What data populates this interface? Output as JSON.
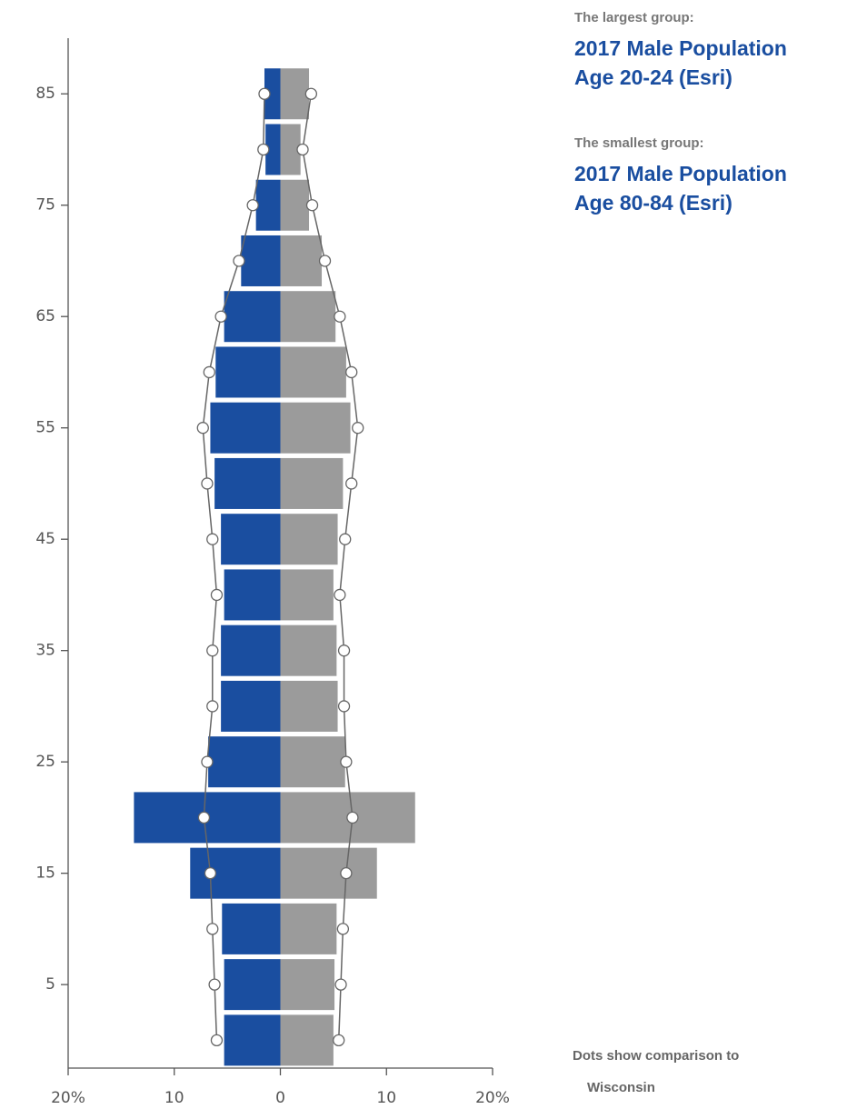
{
  "chart_data": {
    "type": "pyramid",
    "y": [
      0,
      5,
      10,
      15,
      20,
      25,
      30,
      35,
      40,
      45,
      50,
      55,
      60,
      65,
      70,
      75,
      80,
      85
    ],
    "series": [
      {
        "color": "#1a4ea0",
        "values": [
          -5.3,
          -5.3,
          -5.5,
          -8.5,
          -13.8,
          -6.8,
          -5.6,
          -5.6,
          -5.3,
          -5.6,
          -6.2,
          -6.6,
          -6.1,
          -5.3,
          -3.7,
          -2.3,
          -1.4,
          -1.5
        ]
      },
      {
        "color": "#9b9b9b",
        "values": [
          5.0,
          5.1,
          5.3,
          9.1,
          12.7,
          6.1,
          5.4,
          5.3,
          5.0,
          5.4,
          5.9,
          6.6,
          6.2,
          5.2,
          3.9,
          2.7,
          1.9,
          2.7
        ]
      }
    ],
    "comparison_series": [
      {
        "values": [
          -6.0,
          -6.2,
          -6.4,
          -6.6,
          -7.2,
          -6.9,
          -6.4,
          -6.4,
          -6.0,
          -6.4,
          -6.9,
          -7.3,
          -6.7,
          -5.6,
          -3.9,
          -2.6,
          -1.6,
          -1.5
        ]
      },
      {
        "values": [
          5.5,
          5.7,
          5.9,
          6.2,
          6.8,
          6.2,
          6.0,
          6.0,
          5.6,
          6.1,
          6.7,
          7.3,
          6.7,
          5.6,
          4.2,
          3.0,
          2.1,
          2.9
        ]
      }
    ],
    "xlim": [
      -20,
      20
    ],
    "xticks": [
      {
        "value": -20,
        "label": "20%"
      },
      {
        "value": -10,
        "label": "10"
      },
      0,
      10,
      {
        "value": 20,
        "label": "20%"
      }
    ],
    "ylim": [
      -2.5,
      90
    ],
    "yticks": [
      5,
      15,
      25,
      35,
      45,
      55,
      65,
      75,
      85
    ],
    "annotations": [
      {
        "heading": "The largest group:",
        "lines": [
          "2017 Male Population",
          "Age 20-24 (Esri)"
        ]
      },
      {
        "heading": "The smallest group:",
        "lines": [
          "2017 Male Population",
          "Age 80-84 (Esri)"
        ]
      }
    ],
    "footnote": [
      "Dots show comparison to",
      "Wisconsin"
    ]
  }
}
